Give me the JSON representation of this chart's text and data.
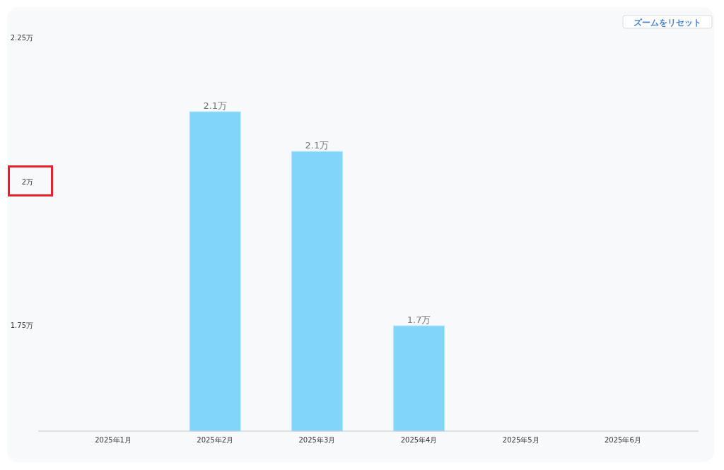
{
  "chart_data": {
    "type": "bar",
    "categories": [
      "2025年1月",
      "2025年2月",
      "2025年3月",
      "2025年4月",
      "2025年5月",
      "2025年6月"
    ],
    "values": [
      null,
      2.121,
      2.052,
      1.749,
      null,
      null
    ],
    "value_labels": [
      null,
      "2.1万",
      "2.1万",
      "1.7万",
      null,
      null
    ],
    "color": "#81d4fa",
    "ylim": [
      1.566,
      2.25
    ],
    "yticks": [
      {
        "value": 1.75,
        "label": "1.75万"
      },
      {
        "value": 2,
        "label": "2万"
      },
      {
        "value": 2.25,
        "label": "2.25万"
      }
    ],
    "grid": false,
    "annotations": [
      "ズームをリセット"
    ]
  }
}
